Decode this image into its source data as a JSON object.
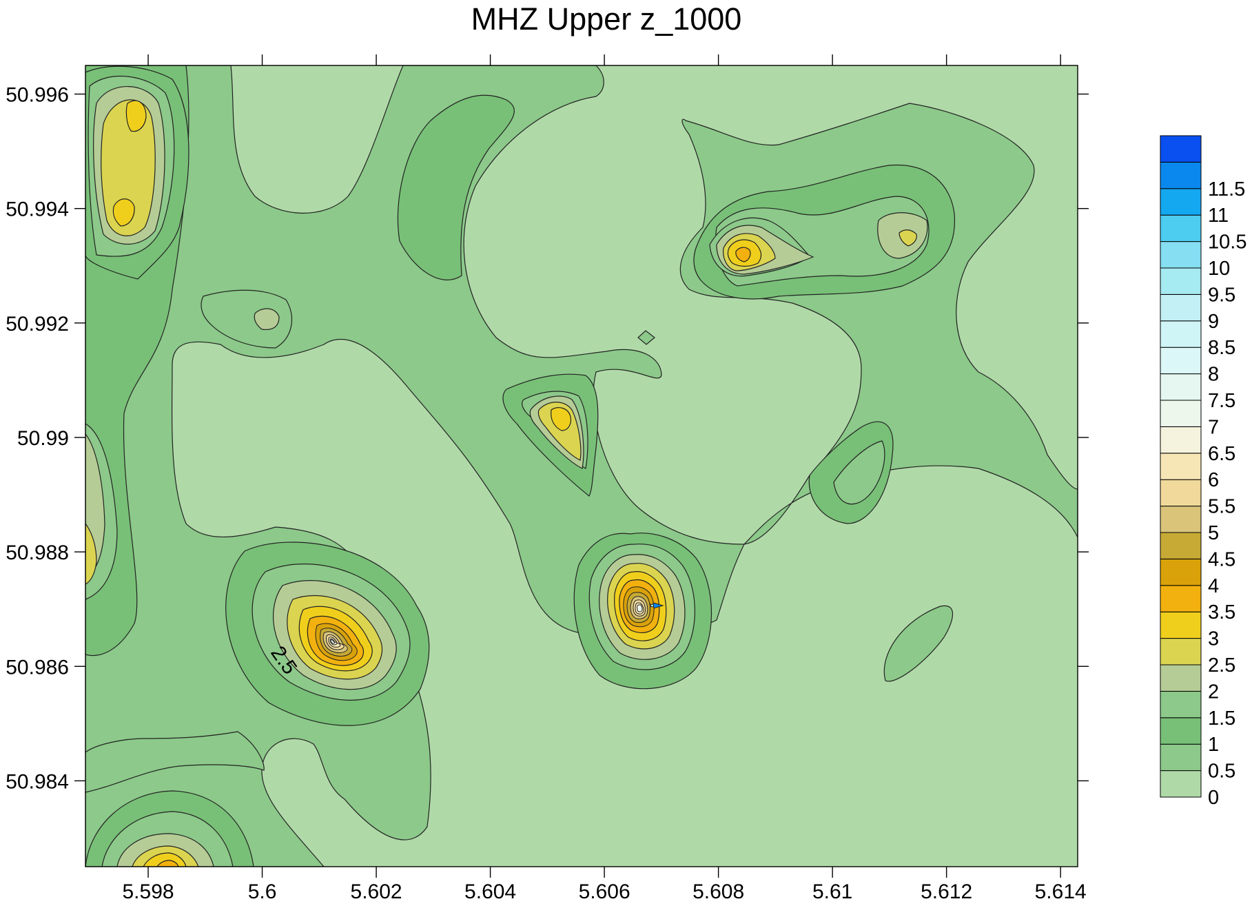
{
  "chart_data": {
    "type": "contour",
    "title": "MHZ Upper z_1000",
    "xlabel": "",
    "ylabel": "",
    "xlim": [
      5.5969,
      5.6143
    ],
    "ylim": [
      50.9825,
      50.9965
    ],
    "x_ticks": [
      5.598,
      5.6,
      5.602,
      5.604,
      5.606,
      5.608,
      5.61,
      5.612,
      5.614
    ],
    "x_tick_labels": [
      "5.598",
      "5.6",
      "5.602",
      "5.604",
      "5.606",
      "5.608",
      "5.61",
      "5.612",
      "5.614"
    ],
    "y_ticks": [
      50.984,
      50.986,
      50.988,
      50.99,
      50.992,
      50.994,
      50.996
    ],
    "y_tick_labels": [
      "50.984",
      "50.986",
      "50.988",
      "50.99",
      "50.992",
      "50.994",
      "50.996"
    ],
    "contour_levels": [
      0,
      0.5,
      1,
      1.5,
      2,
      2.5,
      3,
      3.5,
      4,
      4.5,
      5,
      5.5,
      6,
      6.5,
      7,
      7.5,
      8,
      8.5,
      9,
      9.5,
      10,
      10.5,
      11,
      11.5
    ],
    "level_colors": [
      "#b0d9a8",
      "#8cc98a",
      "#78c077",
      "#8cc98a",
      "#b6cc96",
      "#dbd450",
      "#f0cf1c",
      "#f2b10e",
      "#d9a20a",
      "#c7aa36",
      "#d9c47a",
      "#f0d99a",
      "#f7e6b5",
      "#f5f2de",
      "#edf7ec",
      "#e6f7f2",
      "#dcf7f7",
      "#d0f5f7",
      "#c2f0f5",
      "#a6eaf2",
      "#86def2",
      "#4dcdf0",
      "#14a8f0",
      "#0a88ee",
      "#0a50f0"
    ],
    "contour_labels": [
      {
        "text": "2.5",
        "x": 5.6003,
        "y": 50.986
      }
    ],
    "peaks": [
      {
        "x": 5.601,
        "y": 50.9865,
        "value": 7.0
      },
      {
        "x": 5.6068,
        "y": 50.987,
        "value": 11.5
      },
      {
        "x": 5.5978,
        "y": 50.9955,
        "value": 3.0
      },
      {
        "x": 5.5977,
        "y": 50.9939,
        "value": 3.0
      },
      {
        "x": 5.6083,
        "y": 50.9931,
        "value": 3.5
      },
      {
        "x": 5.6112,
        "y": 50.9934,
        "value": 2.5
      },
      {
        "x": 5.6053,
        "y": 50.9902,
        "value": 3.0
      },
      {
        "x": 5.5983,
        "y": 50.9832,
        "value": 3.5
      },
      {
        "x": 5.597,
        "y": 50.988,
        "value": 2.5
      }
    ],
    "legend": {
      "placement": "right",
      "labels": [
        "0",
        "0.5",
        "1",
        "1.5",
        "2",
        "2.5",
        "3",
        "3.5",
        "4",
        "4.5",
        "5",
        "5.5",
        "6",
        "6.5",
        "7",
        "7.5",
        "8",
        "8.5",
        "9",
        "9.5",
        "10",
        "10.5",
        "11",
        "11.5"
      ]
    }
  }
}
